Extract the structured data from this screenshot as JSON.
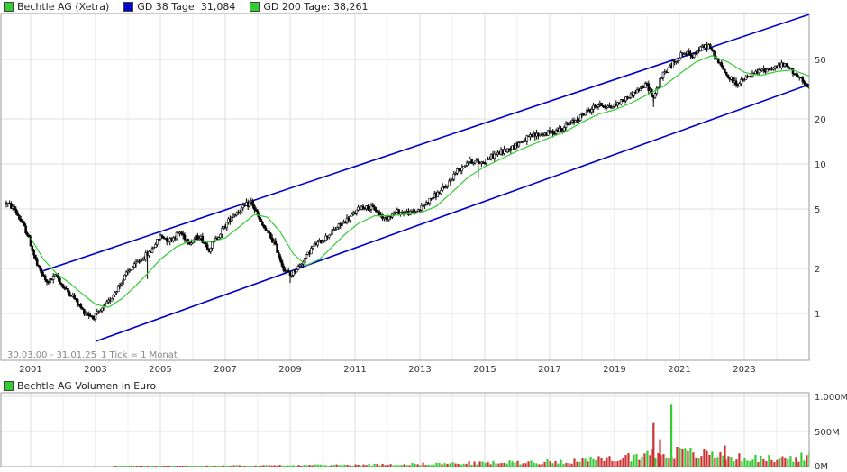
{
  "legend": {
    "price_label": "Bechtle AG (Xetra)",
    "gd38_label": "GD 38 Tage: 31,084",
    "gd200_label": "GD 200 Tage: 38,261"
  },
  "volume_title": "Bechtle AG Volumen in Euro",
  "range_note": "30.03.00 - 31.01.25",
  "tick_note": "1 Tick = 1 Monat",
  "colors": {
    "price_box": "#33cc33",
    "gd38": "#0000cc",
    "gd200": "#33cc33",
    "channel": "#0000cc",
    "vol_up": "#33cc33",
    "vol_down": "#cc3333",
    "grid": "#dddddd"
  },
  "chart_data": [
    {
      "type": "candlestick",
      "scale": "log",
      "x_ticks": [
        "2001",
        "2003",
        "2005",
        "2007",
        "2009",
        "2011",
        "2013",
        "2015",
        "2017",
        "2019",
        "2021",
        "2023"
      ],
      "y_ticks": [
        {
          "value": 1,
          "label": "1"
        },
        {
          "value": 2,
          "label": "2"
        },
        {
          "value": 5,
          "label": "5"
        },
        {
          "value": 10,
          "label": "10"
        },
        {
          "value": 20,
          "label": "20"
        },
        {
          "value": 50,
          "label": "50"
        }
      ],
      "x_range": [
        2000.24,
        2025.08
      ],
      "y_range": [
        0.6,
        100
      ],
      "price_points": [
        [
          2000.25,
          5.5
        ],
        [
          2000.5,
          5.0
        ],
        [
          2000.9,
          3.4
        ],
        [
          2001.2,
          2.1
        ],
        [
          2001.5,
          1.6
        ],
        [
          2001.8,
          1.8
        ],
        [
          2002.0,
          1.5
        ],
        [
          2002.3,
          1.3
        ],
        [
          2002.6,
          1.05
        ],
        [
          2002.9,
          0.95
        ],
        [
          2003.1,
          1.0
        ],
        [
          2003.4,
          1.2
        ],
        [
          2003.7,
          1.5
        ],
        [
          2004.0,
          1.9
        ],
        [
          2004.3,
          2.2
        ],
        [
          2004.7,
          2.6
        ],
        [
          2005.0,
          3.3
        ],
        [
          2005.3,
          3.1
        ],
        [
          2005.6,
          3.5
        ],
        [
          2005.9,
          3.0
        ],
        [
          2006.2,
          3.3
        ],
        [
          2006.5,
          2.7
        ],
        [
          2006.9,
          3.6
        ],
        [
          2007.2,
          4.5
        ],
        [
          2007.5,
          5.0
        ],
        [
          2007.8,
          5.6
        ],
        [
          2008.1,
          4.0
        ],
        [
          2008.5,
          3.0
        ],
        [
          2008.8,
          2.0
        ],
        [
          2009.0,
          1.8
        ],
        [
          2009.3,
          2.1
        ],
        [
          2009.7,
          2.8
        ],
        [
          2010.0,
          3.1
        ],
        [
          2010.4,
          3.7
        ],
        [
          2010.8,
          4.3
        ],
        [
          2011.2,
          5.2
        ],
        [
          2011.6,
          5.0
        ],
        [
          2011.9,
          4.3
        ],
        [
          2012.3,
          4.8
        ],
        [
          2012.7,
          4.7
        ],
        [
          2013.0,
          5.0
        ],
        [
          2013.4,
          6.0
        ],
        [
          2013.8,
          7.0
        ],
        [
          2014.1,
          8.8
        ],
        [
          2014.5,
          10.5
        ],
        [
          2014.9,
          10.2
        ],
        [
          2015.3,
          11.5
        ],
        [
          2015.7,
          12.5
        ],
        [
          2016.1,
          14.0
        ],
        [
          2016.5,
          15.5
        ],
        [
          2016.9,
          16.0
        ],
        [
          2017.3,
          17.0
        ],
        [
          2017.7,
          19.0
        ],
        [
          2018.1,
          22.0
        ],
        [
          2018.5,
          25.0
        ],
        [
          2018.9,
          24.0
        ],
        [
          2019.3,
          27.0
        ],
        [
          2019.7,
          31.0
        ],
        [
          2020.0,
          34.0
        ],
        [
          2020.2,
          28.0
        ],
        [
          2020.5,
          40.0
        ],
        [
          2020.8,
          47.0
        ],
        [
          2021.1,
          55.0
        ],
        [
          2021.4,
          54.0
        ],
        [
          2021.7,
          60.0
        ],
        [
          2021.9,
          62.0
        ],
        [
          2022.2,
          48.0
        ],
        [
          2022.5,
          38.0
        ],
        [
          2022.8,
          34.0
        ],
        [
          2023.1,
          38.0
        ],
        [
          2023.5,
          42.0
        ],
        [
          2023.9,
          44.0
        ],
        [
          2024.2,
          46.0
        ],
        [
          2024.5,
          42.0
        ],
        [
          2024.8,
          35.0
        ],
        [
          2025.05,
          31.0
        ]
      ],
      "gd200_points": [
        [
          2001.0,
          3.2
        ],
        [
          2001.4,
          2.3
        ],
        [
          2001.8,
          1.85
        ],
        [
          2002.2,
          1.6
        ],
        [
          2002.6,
          1.35
        ],
        [
          2003.0,
          1.15
        ],
        [
          2003.4,
          1.1
        ],
        [
          2003.8,
          1.25
        ],
        [
          2004.2,
          1.5
        ],
        [
          2004.6,
          1.85
        ],
        [
          2005.0,
          2.3
        ],
        [
          2005.5,
          2.8
        ],
        [
          2006.0,
          3.1
        ],
        [
          2006.5,
          3.0
        ],
        [
          2007.0,
          3.2
        ],
        [
          2007.5,
          3.9
        ],
        [
          2007.9,
          4.6
        ],
        [
          2008.3,
          4.4
        ],
        [
          2008.7,
          3.5
        ],
        [
          2009.1,
          2.5
        ],
        [
          2009.5,
          2.1
        ],
        [
          2009.9,
          2.3
        ],
        [
          2010.3,
          2.8
        ],
        [
          2010.7,
          3.4
        ],
        [
          2011.1,
          4.0
        ],
        [
          2011.6,
          4.5
        ],
        [
          2012.0,
          4.5
        ],
        [
          2012.5,
          4.6
        ],
        [
          2013.0,
          4.7
        ],
        [
          2013.5,
          5.2
        ],
        [
          2014.0,
          6.5
        ],
        [
          2014.5,
          8.2
        ],
        [
          2015.0,
          9.6
        ],
        [
          2015.5,
          10.8
        ],
        [
          2016.0,
          12.2
        ],
        [
          2016.5,
          13.6
        ],
        [
          2017.0,
          15.0
        ],
        [
          2017.5,
          16.5
        ],
        [
          2018.0,
          19.0
        ],
        [
          2018.5,
          21.5
        ],
        [
          2019.0,
          23.0
        ],
        [
          2019.5,
          25.5
        ],
        [
          2020.0,
          29.0
        ],
        [
          2020.5,
          33.0
        ],
        [
          2021.0,
          40.0
        ],
        [
          2021.5,
          48.0
        ],
        [
          2022.0,
          53.0
        ],
        [
          2022.5,
          48.0
        ],
        [
          2023.0,
          41.0
        ],
        [
          2023.5,
          39.0
        ],
        [
          2024.0,
          41.5
        ],
        [
          2024.5,
          42.5
        ],
        [
          2025.05,
          38.3
        ]
      ],
      "channel_upper": [
        [
          2001.3,
          1.9
        ],
        [
          2025.0,
          100
        ]
      ],
      "channel_lower": [
        [
          2003.0,
          0.65
        ],
        [
          2025.0,
          34.0
        ]
      ]
    },
    {
      "type": "bar",
      "title": "Bechtle AG Volumen in Euro",
      "y_ticks": [
        {
          "value": 0,
          "label": "0M"
        },
        {
          "value": 500,
          "label": "500M"
        },
        {
          "value": 1000,
          "label": "1.000M"
        }
      ],
      "y_range": [
        0,
        1000
      ],
      "volume_profile": [
        [
          2005.0,
          10
        ],
        [
          2008.0,
          15
        ],
        [
          2011.0,
          25
        ],
        [
          2014.0,
          45
        ],
        [
          2017.0,
          70
        ],
        [
          2019.0,
          110
        ],
        [
          2020.0,
          180
        ],
        [
          2021.0,
          200
        ],
        [
          2022.0,
          170
        ],
        [
          2023.0,
          120
        ],
        [
          2024.0,
          110
        ],
        [
          2025.0,
          140
        ]
      ],
      "volume_spikes": [
        [
          2020.75,
          880
        ],
        [
          2020.2,
          620
        ],
        [
          2020.4,
          390
        ],
        [
          2022.4,
          300
        ]
      ]
    }
  ]
}
